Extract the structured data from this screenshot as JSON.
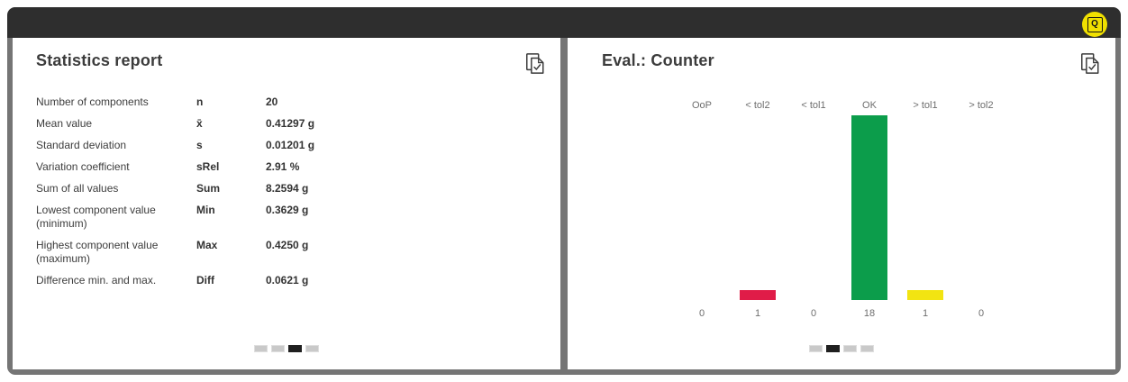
{
  "titlebar": {
    "q_badge_label": "Q"
  },
  "left_panel": {
    "title": "Statistics report",
    "stats_rows": [
      {
        "label": "Number of components",
        "symbol": "n",
        "value": "20"
      },
      {
        "label": "Mean value",
        "symbol": "x̄",
        "value": "0.41297 g"
      },
      {
        "label": "Standard deviation",
        "symbol": "s",
        "value": "0.01201 g"
      },
      {
        "label": "Variation coefficient",
        "symbol": "sRel",
        "value": "2.91 %"
      },
      {
        "label": "Sum of all values",
        "symbol": "Sum",
        "value": "8.2594 g"
      },
      {
        "label": "Lowest component value (minimum)",
        "symbol": "Min",
        "value": "0.3629 g"
      },
      {
        "label": "Highest component value (maximum)",
        "symbol": "Max",
        "value": "0.4250 g"
      },
      {
        "label": "Difference min. and max.",
        "symbol": "Diff",
        "value": "0.0621 g"
      }
    ],
    "pagination": {
      "count": 4,
      "active_index": 2
    }
  },
  "right_panel": {
    "title": "Eval.: Counter",
    "pagination": {
      "count": 4,
      "active_index": 1
    }
  },
  "chart_data": {
    "type": "bar",
    "title": "Eval.: Counter",
    "categories": [
      "OoP",
      "< tol2",
      "< tol1",
      "OK",
      "> tol1",
      "> tol2"
    ],
    "values": [
      0,
      1,
      0,
      18,
      1,
      0
    ],
    "value_labels": [
      "0",
      "1",
      "0",
      "18",
      "1",
      "0"
    ],
    "bar_colors": [
      null,
      "#e01c48",
      null,
      "#0c9d4b",
      "#f2e412",
      null
    ],
    "ylim": [
      0,
      18
    ],
    "grid": false,
    "legend": false
  },
  "colors": {
    "titlebar": "#2e2e2e",
    "frame": "#757575",
    "panel_bg": "#ffffff",
    "accent_yellow": "#f0e000",
    "bar_red": "#e01c48",
    "bar_green": "#0c9d4b",
    "bar_yellow": "#f2e412",
    "pagination_inactive": "#c9c9c9",
    "pagination_active": "#1f1f1f"
  }
}
